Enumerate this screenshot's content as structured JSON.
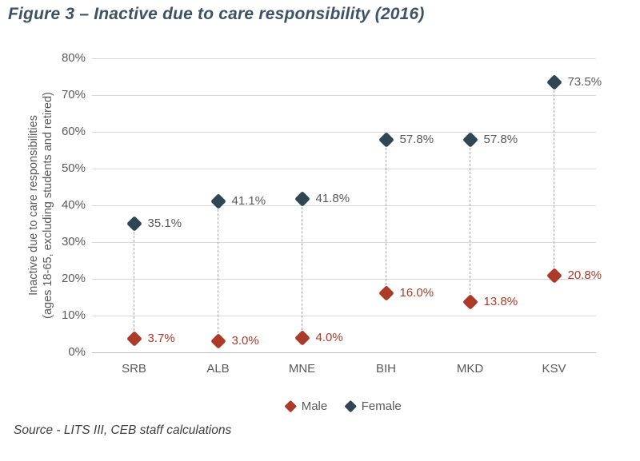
{
  "source": "Source - LITS III, CEB staff calculations",
  "chart_data": {
    "type": "scatter",
    "title": "Figure 3 – Inactive due to care responsibility (2016)",
    "ylabel_line1": "Inactive due to care responsibilities",
    "ylabel_line2": "(ages 18-65, excluding students and retired)",
    "categories": [
      "SRB",
      "ALB",
      "MNE",
      "BIH",
      "MKD",
      "KSV"
    ],
    "series": [
      {
        "name": "Male",
        "color": "#ac3a28",
        "values": [
          3.7,
          3.0,
          4.0,
          16.0,
          13.8,
          20.8
        ],
        "labels": [
          "3.7%",
          "3.0%",
          "4.0%",
          "16.0%",
          "13.8%",
          "20.8%"
        ]
      },
      {
        "name": "Female",
        "color": "#2f4655",
        "values": [
          35.1,
          41.1,
          41.8,
          57.8,
          57.8,
          73.5
        ],
        "labels": [
          "35.1%",
          "41.1%",
          "41.8%",
          "57.8%",
          "57.8%",
          "73.5%"
        ]
      }
    ],
    "ylim": [
      0,
      80
    ],
    "yticks": [
      "0%",
      "10%",
      "20%",
      "30%",
      "40%",
      "50%",
      "60%",
      "70%",
      "80%"
    ],
    "grid": true,
    "legend_position": "bottom",
    "colors": {
      "title": "#3e5266",
      "axis_text": "#595959",
      "gridline": "#d9d9d9",
      "axis_line": "#bdbdbd",
      "connector": "#a6a6a6",
      "source_text": "#3d3d3d"
    }
  }
}
